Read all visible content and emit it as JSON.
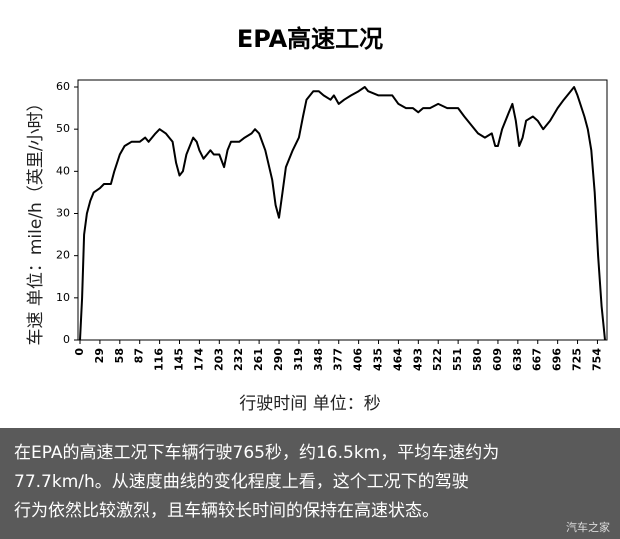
{
  "chart_data": {
    "type": "line",
    "title": "EPA高速工况",
    "x_label": "行驶时间  单位：秒",
    "y_label": "车速  单位：mile/h（英里/小时）",
    "x": [
      0,
      3,
      6,
      10,
      15,
      20,
      29,
      35,
      45,
      50,
      58,
      65,
      75,
      87,
      95,
      100,
      110,
      116,
      125,
      130,
      135,
      140,
      145,
      150,
      155,
      160,
      165,
      170,
      174,
      180,
      185,
      190,
      195,
      203,
      210,
      215,
      220,
      232,
      240,
      250,
      255,
      261,
      270,
      280,
      285,
      290,
      295,
      300,
      310,
      319,
      325,
      330,
      340,
      348,
      355,
      365,
      370,
      377,
      385,
      395,
      406,
      415,
      420,
      435,
      445,
      455,
      464,
      475,
      485,
      493,
      500,
      510,
      522,
      535,
      545,
      551,
      560,
      570,
      580,
      590,
      600,
      605,
      609,
      615,
      625,
      630,
      635,
      640,
      645,
      650,
      660,
      667,
      675,
      685,
      696,
      705,
      715,
      720,
      725,
      735,
      740,
      745,
      750,
      755,
      760,
      765
    ],
    "y": [
      0,
      10,
      25,
      30,
      33,
      35,
      36,
      37,
      37,
      40,
      44,
      46,
      47,
      47,
      48,
      47,
      49,
      50,
      49,
      48,
      47,
      42,
      39,
      40,
      44,
      46,
      48,
      47,
      45,
      43,
      44,
      45,
      44,
      44,
      41,
      45,
      47,
      47,
      48,
      49,
      50,
      49,
      45,
      38,
      32,
      29,
      35,
      41,
      45,
      48,
      53,
      57,
      59,
      59,
      58,
      57,
      58,
      56,
      57,
      58,
      59,
      60,
      59,
      58,
      58,
      58,
      56,
      55,
      55,
      54,
      55,
      55,
      56,
      55,
      55,
      55,
      53,
      51,
      49,
      48,
      49,
      46,
      46,
      50,
      54,
      56,
      52,
      46,
      48,
      52,
      53,
      52,
      50,
      52,
      55,
      57,
      59,
      60,
      58,
      53,
      50,
      45,
      35,
      20,
      8,
      0
    ],
    "color": "#000000",
    "xlim": [
      0,
      765
    ],
    "xticks": [
      0,
      29,
      58,
      87,
      116,
      145,
      174,
      203,
      232,
      261,
      290,
      319,
      348,
      377,
      406,
      435,
      464,
      493,
      522,
      551,
      580,
      609,
      638,
      667,
      696,
      725,
      754
    ],
    "ylim": [
      0,
      60
    ],
    "yticks": [
      0,
      10,
      20,
      30,
      40,
      50,
      60
    ],
    "grid": false
  },
  "caption": [
    "在EPA的高速工况下车辆行驶765秒，约16.5km，平均车速约为",
    "77.7km/h。从速度曲线的变化程度上看，这个工况下的驾驶",
    "行为依然比较激烈，且车辆较长时间的保持在高速状态。"
  ],
  "watermark": "汽车之家"
}
